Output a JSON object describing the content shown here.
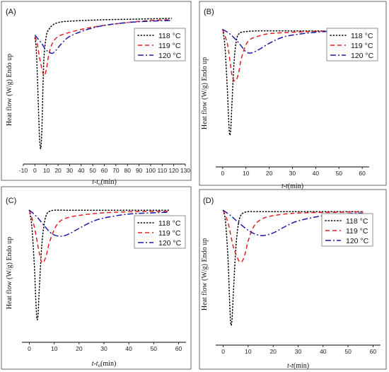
{
  "chart_data": [
    {
      "type": "line",
      "panel_label": "(A)",
      "ylabel": "Heat flow (W/g) Endo up",
      "xlabel_main": "t-t",
      "xlabel_sub": "o",
      "xlabel_unit": "(min)",
      "xlim": [
        -10,
        130
      ],
      "xticks": [
        -10,
        0,
        10,
        20,
        30,
        40,
        50,
        60,
        70,
        80,
        90,
        100,
        110,
        120,
        130
      ],
      "ylim": [
        0,
        1
      ],
      "series": [
        {
          "name": "118 °C",
          "color": "#000000",
          "style": "dotted",
          "x": [
            0,
            1,
            2,
            3,
            4,
            5,
            6,
            7,
            8,
            10,
            12,
            15,
            20,
            30,
            60,
            90,
            118
          ],
          "y": [
            0.84,
            0.78,
            0.6,
            0.35,
            0.13,
            0.05,
            0.18,
            0.5,
            0.72,
            0.86,
            0.9,
            0.93,
            0.95,
            0.96,
            0.97,
            0.975,
            0.98
          ]
        },
        {
          "name": "119 °C",
          "color": "#e02020",
          "style": "dashed",
          "x": [
            0,
            2,
            4,
            6,
            8,
            10,
            12,
            15,
            20,
            30,
            45,
            60,
            80,
            100,
            118
          ],
          "y": [
            0.85,
            0.8,
            0.7,
            0.62,
            0.57,
            0.62,
            0.72,
            0.8,
            0.85,
            0.88,
            0.91,
            0.93,
            0.95,
            0.965,
            0.97
          ]
        },
        {
          "name": "120 °C",
          "color": "#1a1aa8",
          "style": "dashdot",
          "x": [
            0,
            3,
            6,
            9,
            12,
            15,
            18,
            22,
            28,
            35,
            45,
            60,
            80,
            100,
            118
          ],
          "y": [
            0.86,
            0.83,
            0.8,
            0.76,
            0.74,
            0.73,
            0.75,
            0.79,
            0.84,
            0.87,
            0.9,
            0.93,
            0.95,
            0.96,
            0.965
          ]
        }
      ]
    },
    {
      "type": "line",
      "panel_label": "(B)",
      "ylabel": "Heat flow (W/g) Endo up",
      "xlabel_main": "t-t",
      "xlabel_sub": "",
      "xlabel_unit": "(min)",
      "xlim": [
        -3,
        63
      ],
      "xticks": [
        0,
        10,
        20,
        30,
        40,
        50,
        60
      ],
      "ylim": [
        0,
        1
      ],
      "series": [
        {
          "name": "118 °C",
          "color": "#000000",
          "style": "dotted",
          "x": [
            0,
            1,
            2,
            2.5,
            3,
            3.5,
            4,
            5,
            6,
            7,
            8,
            10,
            15,
            30,
            45,
            59
          ],
          "y": [
            0.93,
            0.8,
            0.5,
            0.3,
            0.17,
            0.22,
            0.4,
            0.72,
            0.86,
            0.9,
            0.91,
            0.915,
            0.92,
            0.92,
            0.92,
            0.92
          ]
        },
        {
          "name": "119 °C",
          "color": "#e02020",
          "style": "dashed",
          "x": [
            0,
            2,
            3,
            4,
            5,
            6,
            7,
            8,
            10,
            12,
            15,
            20,
            30,
            45,
            59
          ],
          "y": [
            0.93,
            0.83,
            0.72,
            0.6,
            0.56,
            0.57,
            0.63,
            0.72,
            0.82,
            0.86,
            0.88,
            0.9,
            0.91,
            0.92,
            0.925
          ]
        },
        {
          "name": "120 °C",
          "color": "#1a1aa8",
          "style": "dashdot",
          "x": [
            0,
            3,
            6,
            8,
            10,
            12,
            15,
            20,
            25,
            30,
            40,
            50,
            59
          ],
          "y": [
            0.93,
            0.9,
            0.85,
            0.81,
            0.77,
            0.76,
            0.78,
            0.83,
            0.87,
            0.89,
            0.91,
            0.92,
            0.92
          ]
        }
      ]
    },
    {
      "type": "line",
      "panel_label": "(C)",
      "ylabel": "Heat flow (W/g) Endo up",
      "xlabel_main": "t-t",
      "xlabel_sub": "o",
      "xlabel_unit": "(min)",
      "xlim": [
        -3,
        63
      ],
      "xticks": [
        0,
        10,
        20,
        30,
        40,
        50,
        60
      ],
      "ylim": [
        0,
        1
      ],
      "series": [
        {
          "name": "118 °C",
          "color": "#000000",
          "style": "dotted",
          "x": [
            0,
            1,
            2,
            2.5,
            3,
            3.5,
            4,
            5,
            6,
            7,
            8,
            10,
            15,
            30,
            45,
            56
          ],
          "y": [
            0.95,
            0.82,
            0.52,
            0.3,
            0.12,
            0.15,
            0.35,
            0.68,
            0.85,
            0.92,
            0.94,
            0.95,
            0.95,
            0.95,
            0.95,
            0.95
          ]
        },
        {
          "name": "119 °C",
          "color": "#e02020",
          "style": "dashed",
          "x": [
            0,
            2,
            4,
            5,
            6,
            7,
            8,
            10,
            12,
            15,
            20,
            30,
            45,
            56
          ],
          "y": [
            0.95,
            0.82,
            0.62,
            0.55,
            0.56,
            0.62,
            0.7,
            0.8,
            0.86,
            0.89,
            0.91,
            0.93,
            0.94,
            0.94
          ]
        },
        {
          "name": "120 °C",
          "color": "#1a1aa8",
          "style": "dashdot",
          "x": [
            0,
            3,
            6,
            9,
            12,
            15,
            20,
            25,
            30,
            40,
            50,
            56
          ],
          "y": [
            0.95,
            0.9,
            0.83,
            0.77,
            0.75,
            0.76,
            0.81,
            0.86,
            0.89,
            0.92,
            0.93,
            0.935
          ]
        }
      ]
    },
    {
      "type": "line",
      "panel_label": "(D)",
      "ylabel": "Heat flow (W/g) Endo up",
      "xlabel_main": "t-t",
      "xlabel_sub": "",
      "xlabel_unit": "(min)",
      "xlim": [
        -3,
        63
      ],
      "xticks": [
        0,
        10,
        20,
        30,
        40,
        50,
        60
      ],
      "ylim": [
        0,
        1
      ],
      "series": [
        {
          "name": "118 °C",
          "color": "#000000",
          "style": "dotted",
          "x": [
            0,
            1,
            2,
            2.5,
            3,
            3.5,
            4,
            5,
            6,
            7,
            8,
            10,
            15,
            30,
            45,
            56
          ],
          "y": [
            0.95,
            0.85,
            0.55,
            0.3,
            0.1,
            0.12,
            0.3,
            0.65,
            0.84,
            0.91,
            0.93,
            0.94,
            0.94,
            0.94,
            0.94,
            0.94
          ]
        },
        {
          "name": "119 °C",
          "color": "#e02020",
          "style": "dashed",
          "x": [
            0,
            2,
            4,
            6,
            7,
            8,
            9,
            10,
            12,
            15,
            20,
            30,
            45,
            56
          ],
          "y": [
            0.95,
            0.85,
            0.68,
            0.58,
            0.56,
            0.58,
            0.64,
            0.72,
            0.82,
            0.88,
            0.91,
            0.93,
            0.935,
            0.94
          ]
        },
        {
          "name": "120 °C",
          "color": "#1a1aa8",
          "style": "dashdot",
          "x": [
            0,
            3,
            6,
            10,
            13,
            16,
            20,
            25,
            30,
            40,
            50,
            56
          ],
          "y": [
            0.95,
            0.91,
            0.86,
            0.8,
            0.77,
            0.76,
            0.78,
            0.83,
            0.87,
            0.91,
            0.925,
            0.93
          ]
        }
      ]
    }
  ]
}
